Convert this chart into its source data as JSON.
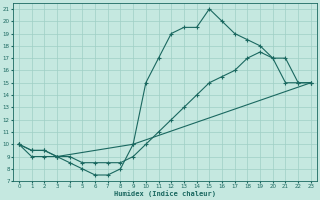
{
  "line1_x": [
    0,
    1,
    2,
    3,
    4,
    5,
    6,
    7,
    8,
    9,
    10,
    11,
    12,
    13,
    14,
    15,
    16,
    17,
    18,
    19,
    20,
    21,
    22,
    23
  ],
  "line1_y": [
    10,
    9,
    9,
    9,
    8.5,
    8,
    7.5,
    7.5,
    8,
    10,
    15,
    17,
    19,
    19.5,
    19.5,
    21,
    20,
    19,
    18.5,
    18,
    17,
    15,
    15,
    15
  ],
  "line2_x": [
    0,
    1,
    2,
    3,
    4,
    5,
    6,
    7,
    8,
    9,
    10,
    11,
    12,
    13,
    14,
    15,
    16,
    17,
    18,
    19,
    20,
    21,
    22,
    23
  ],
  "line2_y": [
    10,
    9.5,
    9.5,
    9,
    9,
    8.5,
    8.5,
    8.5,
    8.5,
    9,
    10,
    11,
    12,
    13,
    14,
    15,
    15.5,
    16,
    17,
    17.5,
    17,
    17,
    15,
    15
  ],
  "line3_x": [
    0,
    1,
    2,
    3,
    9,
    23
  ],
  "line3_y": [
    10,
    9.5,
    9.5,
    9,
    10,
    15
  ],
  "bg_color": "#c5e8e0",
  "grid_color": "#9fcfc5",
  "line_color": "#1a6860",
  "xlim": [
    -0.5,
    23.5
  ],
  "ylim": [
    7,
    21.5
  ],
  "xlabel": "Humidex (Indice chaleur)",
  "xticks": [
    0,
    1,
    2,
    3,
    4,
    5,
    6,
    7,
    8,
    9,
    10,
    11,
    12,
    13,
    14,
    15,
    16,
    17,
    18,
    19,
    20,
    21,
    22,
    23
  ],
  "yticks": [
    7,
    8,
    9,
    10,
    11,
    12,
    13,
    14,
    15,
    16,
    17,
    18,
    19,
    20,
    21
  ]
}
